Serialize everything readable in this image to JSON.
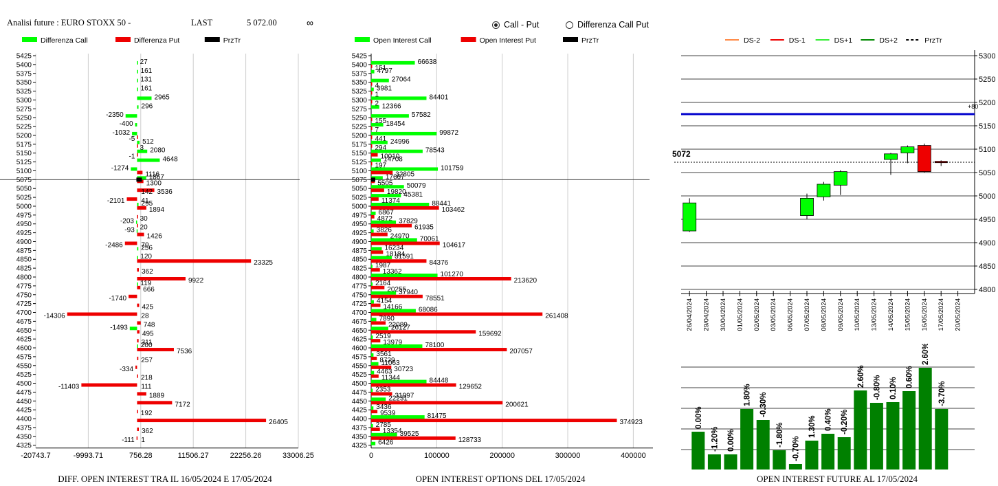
{
  "header": {
    "title": "Analisi future : EURO STOXX 50 -",
    "last_label": "LAST",
    "last_value": "5 072.00",
    "infinity": "∞"
  },
  "mode": {
    "options": [
      {
        "label": "Call - Put",
        "selected": true
      },
      {
        "label": "Differenza Call Put",
        "selected": false
      }
    ]
  },
  "colors": {
    "green": "#00ff00",
    "red": "#ee0000",
    "black": "#000000",
    "dark_green": "#008000",
    "blue": "#0000cc"
  },
  "chart_data": [
    {
      "type": "bar",
      "orientation": "horizontal",
      "title": "DIFF. OPEN INTEREST TRA IL 16/05/2024 E 17/05/2024",
      "legend": [
        "Differenza Call",
        "Differenza Put",
        "PrzTr"
      ],
      "x_ticks": [
        "-20743.7",
        "-9993.71",
        "756.28",
        "11506.27",
        "22256.26",
        "33006.25"
      ],
      "xlim": [
        -20743.7,
        33006.25
      ],
      "reference_strike": 5075,
      "strikes": [
        5425,
        5400,
        5375,
        5350,
        5325,
        5300,
        5275,
        5250,
        5225,
        5200,
        5175,
        5150,
        5125,
        5100,
        5075,
        5050,
        5025,
        5000,
        4975,
        4950,
        4925,
        4900,
        4875,
        4850,
        4825,
        4800,
        4775,
        4750,
        4725,
        4700,
        4675,
        4650,
        4625,
        4600,
        4575,
        4550,
        4525,
        4500,
        4475,
        4450,
        4425,
        4400,
        4375,
        4350,
        4325
      ],
      "call": [
        null,
        27,
        161,
        131,
        161,
        2965,
        296,
        -2350,
        -400,
        -1032,
        512,
        2080,
        4648,
        -1274,
        1867,
        null,
        null,
        295,
        null,
        -203,
        -93,
        null,
        256,
        120,
        null,
        null,
        119,
        null,
        null,
        null,
        null,
        -1493,
        null,
        200,
        null,
        null,
        null,
        null,
        null,
        null,
        null,
        null,
        null,
        null,
        null
      ],
      "put": [
        null,
        null,
        null,
        null,
        null,
        null,
        null,
        null,
        null,
        -5,
        3,
        -1,
        null,
        1116,
        1300,
        3536,
        -2101,
        1894,
        30,
        20,
        1426,
        -2486,
        null,
        23325,
        362,
        9922,
        666,
        -1740,
        425,
        -14306,
        748,
        495,
        311,
        7536,
        257,
        -334,
        218,
        -11403,
        1889,
        7172,
        192,
        26405,
        362,
        -111,
        null
      ],
      "extra_labels": [
        {
          "strike": 5050,
          "text": "142"
        },
        {
          "strike": 5025,
          "text": "41"
        },
        {
          "strike": 4900,
          "text": "70"
        },
        {
          "strike": 4700,
          "text": "28"
        },
        {
          "strike": 4500,
          "text": "111"
        },
        {
          "strike": 4350,
          "text": "1"
        }
      ]
    },
    {
      "type": "bar",
      "orientation": "horizontal",
      "title": "OPEN INTEREST OPTIONS DEL 17/05/2024",
      "legend": [
        "Open Interest Call",
        "Open Interest Put",
        "PrzTr"
      ],
      "x_ticks": [
        "0",
        "100000",
        "200000",
        "300000",
        "400000"
      ],
      "xlim": [
        0,
        430000
      ],
      "reference_strike": 5075,
      "strikes": [
        5425,
        5400,
        5375,
        5350,
        5325,
        5300,
        5275,
        5250,
        5225,
        5200,
        5175,
        5150,
        5125,
        5100,
        5075,
        5050,
        5025,
        5000,
        4975,
        4950,
        4925,
        4900,
        4875,
        4850,
        4825,
        4800,
        4775,
        4750,
        4725,
        4700,
        4675,
        4650,
        4625,
        4600,
        4575,
        4550,
        4525,
        4500,
        4475,
        4450,
        4425,
        4400,
        4375,
        4350,
        4325
      ],
      "call": [
        null,
        66638,
        4797,
        27064,
        3981,
        84401,
        12366,
        57582,
        18454,
        99872,
        24996,
        78543,
        14708,
        101759,
        17667,
        50079,
        45381,
        88441,
        6867,
        37829,
        3826,
        70061,
        16234,
        31591,
        1987,
        101270,
        2164,
        37940,
        4154,
        68086,
        7890,
        26127,
        2519,
        78100,
        3561,
        11063,
        4463,
        84448,
        2353,
        22231,
        3436,
        81475,
        2785,
        39525,
        6426
      ],
      "put": [
        null,
        151,
        null,
        4,
        1,
        2,
        null,
        155,
        7,
        441,
        294,
        10010,
        197,
        32805,
        5505,
        19820,
        11374,
        103462,
        4872,
        61935,
        24970,
        104617,
        18184,
        84376,
        13362,
        213620,
        20255,
        78551,
        14166,
        261408,
        22089,
        159692,
        13979,
        207057,
        8729,
        30723,
        11344,
        129652,
        31997,
        200621,
        9539,
        374923,
        13354,
        128733,
        null
      ]
    },
    {
      "type": "candlestick",
      "legend": [
        "DS-2",
        "DS-1",
        "DS+1",
        "DS+2",
        "PrzTr"
      ],
      "y_ticks": [
        "5300",
        "5250",
        "5200",
        "5150",
        "5100",
        "5050",
        "5000",
        "4950",
        "4900",
        "4850",
        "4800"
      ],
      "ylim": [
        4800,
        5300
      ],
      "last_label": "5072",
      "blue_line": 5175,
      "blue_label": "+80",
      "dates": [
        "26/04/2024",
        "29/04/2024",
        "30/04/2024",
        "01/05/2024",
        "02/05/2024",
        "03/05/2024",
        "06/05/2024",
        "07/05/2024",
        "08/05/2024",
        "09/05/2024",
        "10/05/2024",
        "13/05/2024",
        "14/05/2024",
        "15/05/2024",
        "16/05/2024",
        "17/05/2024",
        "20/05/2024"
      ],
      "candles": [
        {
          "date": "26/04/2024",
          "open": 4925,
          "close": 4985,
          "high": 4995,
          "low": 4923,
          "color": "green"
        },
        {
          "date": "07/05/2024",
          "open": 4958,
          "close": 4995,
          "high": 5005,
          "low": 4950,
          "color": "green"
        },
        {
          "date": "08/05/2024",
          "open": 4998,
          "close": 5025,
          "high": 5030,
          "low": 4990,
          "color": "green"
        },
        {
          "date": "09/05/2024",
          "open": 5023,
          "close": 5052,
          "high": 5055,
          "low": 5002,
          "color": "green"
        },
        {
          "date": "14/05/2024",
          "open": 5078,
          "close": 5090,
          "high": 5092,
          "low": 5045,
          "color": "green"
        },
        {
          "date": "15/05/2024",
          "open": 5092,
          "close": 5105,
          "high": 5108,
          "low": 5070,
          "color": "green"
        },
        {
          "date": "16/05/2024",
          "open": 5108,
          "close": 5052,
          "high": 5112,
          "low": 5050,
          "color": "red"
        },
        {
          "date": "17/05/2024",
          "open": 5074,
          "close": 5072,
          "high": 5076,
          "low": 5064,
          "color": "darkred"
        }
      ]
    },
    {
      "type": "bar",
      "title": "OPEN INTEREST FUTURE AL 17/05/2024",
      "values": [
        0.55,
        0.22,
        0.22,
        0.88,
        0.72,
        0.28,
        0.08,
        0.42,
        0.52,
        0.47,
        1.15,
        0.97,
        0.98,
        1.14,
        1.48,
        0.88
      ],
      "labels": [
        "0.00%",
        "-1.20%",
        "0.00%",
        "1.80%",
        "-0.30%",
        "-1.80%",
        "-0.70%",
        "1.30%",
        "0.40%",
        "-0.20%",
        "2.60%",
        "-0.80%",
        "0.10%",
        "0.60%",
        "2.60%",
        "-3.70%"
      ]
    }
  ],
  "captions": {
    "left": "DIFF. OPEN INTEREST TRA IL 16/05/2024 E 17/05/2024",
    "middle": "OPEN INTEREST OPTIONS DEL 17/05/2024",
    "right": "OPEN INTEREST FUTURE AL 17/05/2024"
  }
}
